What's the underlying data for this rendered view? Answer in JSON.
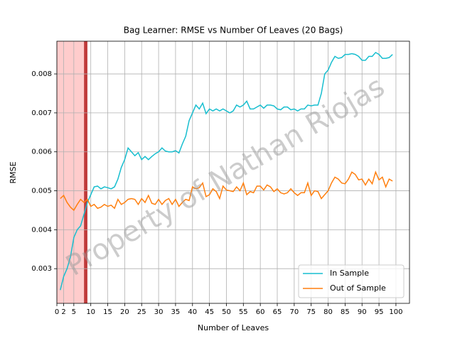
{
  "chart_data": {
    "type": "line",
    "title": "Bag Learner: RMSE vs Number Of Leaves (20 Bags)",
    "xlabel": "Number of Leaves",
    "ylabel": "RMSE",
    "watermark": "Property of Nathan Riojas",
    "x": [
      1,
      2,
      3,
      4,
      5,
      6,
      7,
      8,
      9,
      10,
      11,
      12,
      13,
      14,
      15,
      16,
      17,
      18,
      19,
      20,
      21,
      22,
      23,
      24,
      25,
      26,
      27,
      28,
      29,
      30,
      31,
      32,
      33,
      34,
      35,
      36,
      37,
      38,
      39,
      40,
      41,
      42,
      43,
      44,
      45,
      46,
      47,
      48,
      49,
      50,
      51,
      52,
      53,
      54,
      55,
      56,
      57,
      58,
      59,
      60,
      61,
      62,
      63,
      64,
      65,
      66,
      67,
      68,
      69,
      70,
      71,
      72,
      73,
      74,
      75,
      76,
      77,
      78,
      79,
      80,
      81,
      82,
      83,
      84,
      85,
      86,
      87,
      88,
      89,
      90,
      91,
      92,
      93,
      94,
      95,
      96,
      97,
      98,
      99
    ],
    "series": [
      {
        "name": "In Sample",
        "color": "#17becf",
        "values": [
          0.00245,
          0.0028,
          0.003,
          0.0033,
          0.0038,
          0.004,
          0.0041,
          0.0044,
          0.0047,
          0.0049,
          0.0051,
          0.00512,
          0.00505,
          0.0051,
          0.00508,
          0.00505,
          0.0051,
          0.0053,
          0.0056,
          0.0058,
          0.0061,
          0.006,
          0.0059,
          0.00598,
          0.0058,
          0.00588,
          0.0058,
          0.00588,
          0.00595,
          0.006,
          0.0061,
          0.00602,
          0.006,
          0.006,
          0.00603,
          0.00597,
          0.0062,
          0.0064,
          0.0068,
          0.007,
          0.0072,
          0.0071,
          0.00725,
          0.00698,
          0.0071,
          0.00705,
          0.0071,
          0.00705,
          0.0071,
          0.00705,
          0.007,
          0.00705,
          0.0072,
          0.00715,
          0.0072,
          0.0073,
          0.0071,
          0.0071,
          0.00715,
          0.0072,
          0.00712,
          0.0072,
          0.0072,
          0.00718,
          0.0071,
          0.00708,
          0.00715,
          0.00715,
          0.00708,
          0.0071,
          0.00705,
          0.0071,
          0.0071,
          0.0072,
          0.00718,
          0.0072,
          0.0072,
          0.0075,
          0.008,
          0.0081,
          0.0083,
          0.00845,
          0.0084,
          0.00842,
          0.0085,
          0.0085,
          0.00852,
          0.0085,
          0.00845,
          0.00835,
          0.00835,
          0.00845,
          0.00845,
          0.00855,
          0.0085,
          0.0084,
          0.0084,
          0.00842,
          0.0085
        ]
      },
      {
        "name": "Out of Sample",
        "color": "#ff7f0e",
        "values": [
          0.0048,
          0.00488,
          0.0047,
          0.00458,
          0.0045,
          0.00465,
          0.00478,
          0.0047,
          0.00478,
          0.0046,
          0.00465,
          0.00455,
          0.00458,
          0.00465,
          0.0046,
          0.00463,
          0.00455,
          0.00478,
          0.00465,
          0.0047,
          0.00478,
          0.0048,
          0.00478,
          0.00465,
          0.0048,
          0.0047,
          0.00488,
          0.00468,
          0.00465,
          0.00478,
          0.00465,
          0.00475,
          0.0048,
          0.00465,
          0.00478,
          0.0046,
          0.0047,
          0.00478,
          0.00475,
          0.0051,
          0.00505,
          0.00508,
          0.0052,
          0.00485,
          0.0049,
          0.00505,
          0.00498,
          0.0048,
          0.00512,
          0.00502,
          0.005,
          0.00498,
          0.0051,
          0.005,
          0.0052,
          0.0049,
          0.00498,
          0.00495,
          0.00512,
          0.00512,
          0.00502,
          0.00515,
          0.0051,
          0.00498,
          0.00505,
          0.00495,
          0.00492,
          0.00495,
          0.00505,
          0.00495,
          0.00488,
          0.00495,
          0.00495,
          0.0052,
          0.00488,
          0.005,
          0.00498,
          0.0048,
          0.0049,
          0.005,
          0.0052,
          0.00535,
          0.0053,
          0.0052,
          0.00518,
          0.0053,
          0.00548,
          0.00542,
          0.00528,
          0.0053,
          0.00515,
          0.0053,
          0.00518,
          0.00548,
          0.00528,
          0.00535,
          0.0051,
          0.0053,
          0.00525
        ]
      }
    ],
    "spans": [
      {
        "x0": 0,
        "x1": 8,
        "color": "#ffcccc"
      },
      {
        "x0": 8,
        "x1": 9,
        "color": "#c03a3a"
      }
    ],
    "xlim": [
      0,
      104
    ],
    "ylim": [
      0.00211,
      0.00884
    ],
    "xticks": [
      0,
      2,
      5,
      10,
      15,
      20,
      25,
      30,
      35,
      40,
      45,
      50,
      55,
      60,
      65,
      70,
      75,
      80,
      85,
      90,
      95,
      100
    ],
    "yticks": [
      0.003,
      0.004,
      0.005,
      0.006,
      0.007,
      0.008
    ],
    "grid": true,
    "legend": "lower right"
  }
}
